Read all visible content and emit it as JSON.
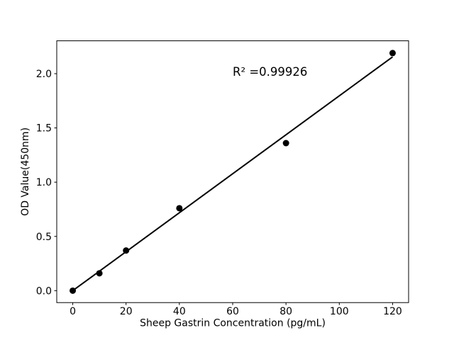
{
  "chart_data": {
    "type": "scatter",
    "title": "",
    "xlabel": "Sheep Gastrin Concentration (pg/mL)",
    "ylabel": "OD Value(450nm)",
    "x": [
      0,
      10,
      20,
      40,
      80,
      120
    ],
    "y": [
      0.0,
      0.16,
      0.37,
      0.76,
      1.36,
      2.19
    ],
    "trendline": {
      "x": [
        0,
        120
      ],
      "y": [
        0.0,
        2.155
      ]
    },
    "annotation": {
      "text": "R² =0.99926"
    },
    "x_ticks": [
      0,
      20,
      40,
      60,
      80,
      100,
      120
    ],
    "x_tick_labels": [
      "0",
      "20",
      "40",
      "60",
      "80",
      "100",
      "120"
    ],
    "y_ticks": [
      0.0,
      0.5,
      1.0,
      1.5,
      2.0
    ],
    "y_tick_labels": [
      "0.0",
      "0.5",
      "1.0",
      "1.5",
      "2.0"
    ],
    "xlim": [
      -6,
      126
    ],
    "ylim": [
      -0.11,
      2.303
    ],
    "grid": false,
    "legend": "none",
    "marker_color": "#000000",
    "line_color": "#000000",
    "axis_color": "#000000",
    "background": "#ffffff"
  }
}
